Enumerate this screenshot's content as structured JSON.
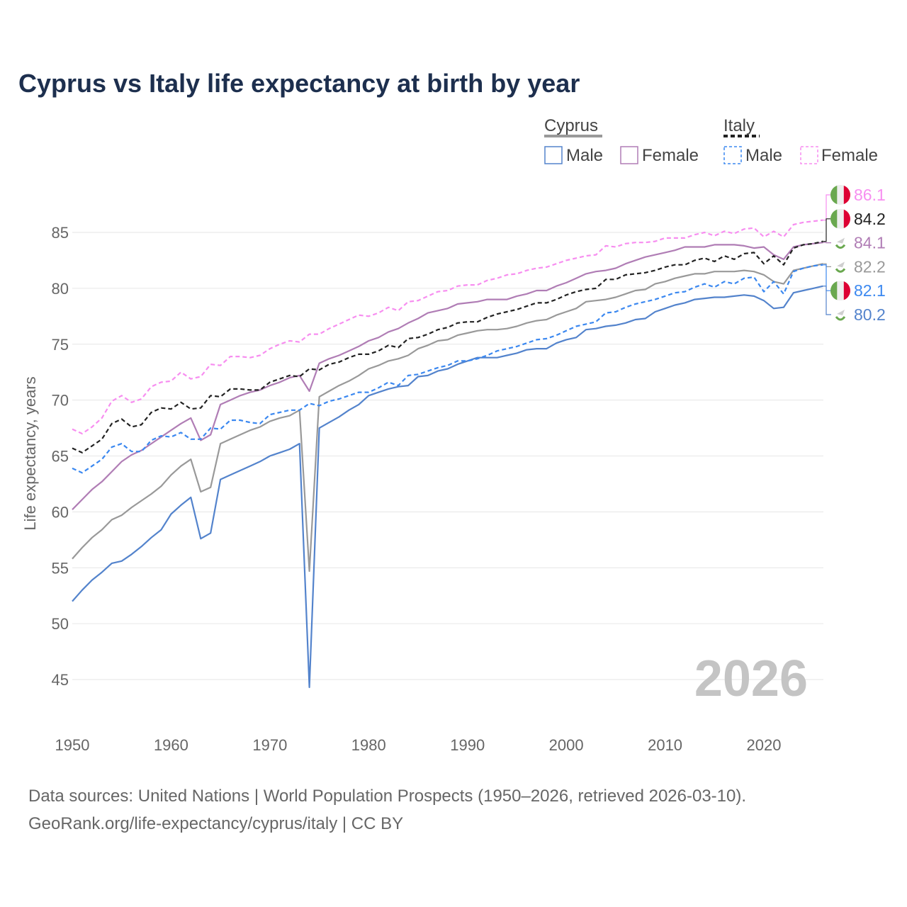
{
  "chart_data": {
    "type": "line",
    "title": "Cyprus vs Italy life expectancy at birth by year",
    "xlabel": "",
    "ylabel": "Life expectancy, years",
    "xlim": [
      1950,
      2026
    ],
    "ylim": [
      42,
      88
    ],
    "x_ticks": [
      1950,
      1960,
      1970,
      1980,
      1990,
      2000,
      2010,
      2020
    ],
    "y_ticks": [
      45,
      50,
      55,
      60,
      65,
      70,
      75,
      80,
      85
    ],
    "grid": true,
    "legend": {
      "placement": "top-right",
      "groups": [
        {
          "name": "Cyprus",
          "items": [
            "Male",
            "Female"
          ]
        },
        {
          "name": "Italy",
          "items": [
            "Male",
            "Female"
          ]
        }
      ]
    },
    "year_watermark": "2026",
    "x_start": 1950,
    "series": [
      {
        "name": "Cyprus Male",
        "country": "Cyprus",
        "color": "#5383cc",
        "dash": false,
        "end_label": "80.2",
        "values": [
          52.0,
          53.0,
          53.9,
          54.6,
          55.4,
          55.6,
          56.2,
          56.9,
          57.7,
          58.4,
          59.8,
          60.6,
          61.3,
          57.6,
          58.1,
          62.9,
          63.3,
          63.7,
          64.1,
          64.5,
          65.0,
          65.3,
          65.6,
          66.1,
          44.3,
          67.5,
          68.0,
          68.5,
          69.1,
          69.6,
          70.4,
          70.7,
          71.0,
          71.2,
          71.3,
          72.1,
          72.2,
          72.6,
          72.8,
          73.2,
          73.5,
          73.8,
          73.8,
          73.8,
          74.0,
          74.2,
          74.5,
          74.6,
          74.6,
          75.1,
          75.4,
          75.6,
          76.3,
          76.4,
          76.6,
          76.7,
          76.9,
          77.2,
          77.3,
          77.9,
          78.2,
          78.5,
          78.7,
          79.0,
          79.1,
          79.2,
          79.2,
          79.3,
          79.4,
          79.3,
          78.9,
          78.2,
          78.3,
          79.6,
          79.8,
          80.0,
          80.2
        ]
      },
      {
        "name": "Cyprus Female",
        "country": "Cyprus",
        "color": "#b07db5",
        "dash": false,
        "end_label": "84.1",
        "values": [
          60.2,
          61.1,
          62.0,
          62.7,
          63.6,
          64.5,
          65.1,
          65.5,
          66.1,
          66.7,
          67.3,
          67.9,
          68.4,
          66.4,
          66.9,
          69.6,
          70.0,
          70.4,
          70.7,
          70.9,
          71.3,
          71.6,
          72.0,
          72.2,
          70.8,
          73.3,
          73.7,
          74.0,
          74.4,
          74.8,
          75.3,
          75.6,
          76.1,
          76.4,
          76.9,
          77.3,
          77.8,
          78.0,
          78.2,
          78.6,
          78.7,
          78.8,
          79.0,
          79.0,
          79.0,
          79.3,
          79.5,
          79.8,
          79.8,
          80.2,
          80.5,
          80.9,
          81.3,
          81.5,
          81.6,
          81.8,
          82.2,
          82.5,
          82.8,
          83.0,
          83.2,
          83.4,
          83.7,
          83.7,
          83.7,
          83.9,
          83.9,
          83.9,
          83.8,
          83.6,
          83.7,
          83.0,
          82.6,
          83.7,
          83.9,
          84.0,
          84.1
        ]
      },
      {
        "name": "Cyprus Total",
        "country": "Cyprus",
        "color": "#999999",
        "dash": false,
        "end_label": "82.2",
        "values": [
          55.8,
          56.8,
          57.7,
          58.4,
          59.3,
          59.7,
          60.4,
          61.0,
          61.6,
          62.3,
          63.3,
          64.1,
          64.7,
          61.8,
          62.2,
          66.1,
          66.5,
          66.9,
          67.3,
          67.6,
          68.1,
          68.4,
          68.6,
          69.1,
          54.7,
          70.3,
          70.8,
          71.3,
          71.7,
          72.2,
          72.8,
          73.1,
          73.5,
          73.7,
          74.0,
          74.6,
          74.9,
          75.3,
          75.4,
          75.8,
          76.0,
          76.2,
          76.3,
          76.3,
          76.4,
          76.6,
          76.9,
          77.1,
          77.2,
          77.6,
          77.9,
          78.2,
          78.8,
          78.9,
          79.0,
          79.2,
          79.5,
          79.8,
          79.9,
          80.4,
          80.6,
          80.9,
          81.1,
          81.3,
          81.3,
          81.5,
          81.5,
          81.5,
          81.6,
          81.5,
          81.2,
          80.6,
          80.4,
          81.6,
          81.8,
          82.0,
          82.2
        ]
      },
      {
        "name": "Italy Male",
        "country": "Italy",
        "color": "#3b88f0",
        "dash": true,
        "end_label": "82.1",
        "values": [
          63.9,
          63.5,
          64.1,
          64.7,
          65.8,
          66.1,
          65.4,
          65.4,
          66.4,
          66.8,
          66.7,
          67.1,
          66.5,
          66.5,
          67.5,
          67.4,
          68.2,
          68.2,
          68.0,
          67.9,
          68.7,
          68.9,
          69.1,
          69.1,
          69.7,
          69.5,
          69.9,
          70.1,
          70.4,
          70.7,
          70.7,
          71.1,
          71.6,
          71.3,
          72.2,
          72.3,
          72.6,
          72.9,
          73.1,
          73.5,
          73.5,
          73.7,
          74.0,
          74.4,
          74.6,
          74.8,
          75.1,
          75.4,
          75.5,
          75.8,
          76.2,
          76.6,
          76.8,
          77.0,
          77.8,
          77.9,
          78.3,
          78.6,
          78.8,
          79.0,
          79.3,
          79.6,
          79.7,
          80.1,
          80.4,
          80.1,
          80.6,
          80.4,
          80.9,
          81.0,
          79.7,
          80.6,
          79.5,
          81.5,
          81.8,
          82.0,
          82.1
        ]
      },
      {
        "name": "Italy Female",
        "country": "Italy",
        "color": "#f78ef0",
        "dash": true,
        "end_label": "86.1",
        "values": [
          67.4,
          67.0,
          67.6,
          68.4,
          69.9,
          70.4,
          69.8,
          70.1,
          71.2,
          71.6,
          71.7,
          72.5,
          71.9,
          72.1,
          73.2,
          73.1,
          73.9,
          73.9,
          73.8,
          74.0,
          74.6,
          75.0,
          75.3,
          75.2,
          75.9,
          75.9,
          76.4,
          76.8,
          77.2,
          77.6,
          77.5,
          77.8,
          78.3,
          78.0,
          78.8,
          78.9,
          79.3,
          79.7,
          79.8,
          80.2,
          80.3,
          80.3,
          80.7,
          80.9,
          81.2,
          81.3,
          81.6,
          81.8,
          81.9,
          82.2,
          82.5,
          82.7,
          82.9,
          83.0,
          83.8,
          83.7,
          84.0,
          84.1,
          84.1,
          84.2,
          84.5,
          84.5,
          84.5,
          84.8,
          85.0,
          84.7,
          85.1,
          84.9,
          85.3,
          85.4,
          84.6,
          85.1,
          84.6,
          85.7,
          85.9,
          86.0,
          86.1
        ]
      },
      {
        "name": "Italy Total",
        "country": "Italy",
        "color": "#222222",
        "dash": true,
        "end_label": "84.2",
        "values": [
          65.7,
          65.3,
          65.9,
          66.5,
          67.9,
          68.3,
          67.6,
          67.8,
          68.9,
          69.3,
          69.2,
          69.8,
          69.2,
          69.3,
          70.4,
          70.3,
          71.0,
          71.0,
          70.9,
          70.9,
          71.6,
          71.9,
          72.2,
          72.1,
          72.8,
          72.7,
          73.2,
          73.4,
          73.8,
          74.1,
          74.1,
          74.4,
          74.9,
          74.7,
          75.5,
          75.6,
          75.9,
          76.3,
          76.5,
          76.9,
          77.0,
          77.0,
          77.4,
          77.7,
          77.9,
          78.1,
          78.4,
          78.7,
          78.7,
          79.0,
          79.4,
          79.7,
          79.9,
          80.0,
          80.8,
          80.8,
          81.2,
          81.3,
          81.4,
          81.6,
          81.9,
          82.1,
          82.1,
          82.5,
          82.7,
          82.4,
          82.9,
          82.6,
          83.1,
          83.2,
          82.2,
          82.9,
          82.1,
          83.6,
          83.9,
          84.0,
          84.2
        ]
      }
    ],
    "end_label_order": [
      "Italy Female",
      "Italy Total",
      "Cyprus Female",
      "Cyprus Total",
      "Italy Male",
      "Cyprus Male"
    ]
  },
  "footer": {
    "line1": "Data sources: United Nations | World Population Prospects (1950–2026, retrieved 2026-03-10).",
    "line2": "GeoRank.org/life-expectancy/cyprus/italy | CC BY"
  }
}
